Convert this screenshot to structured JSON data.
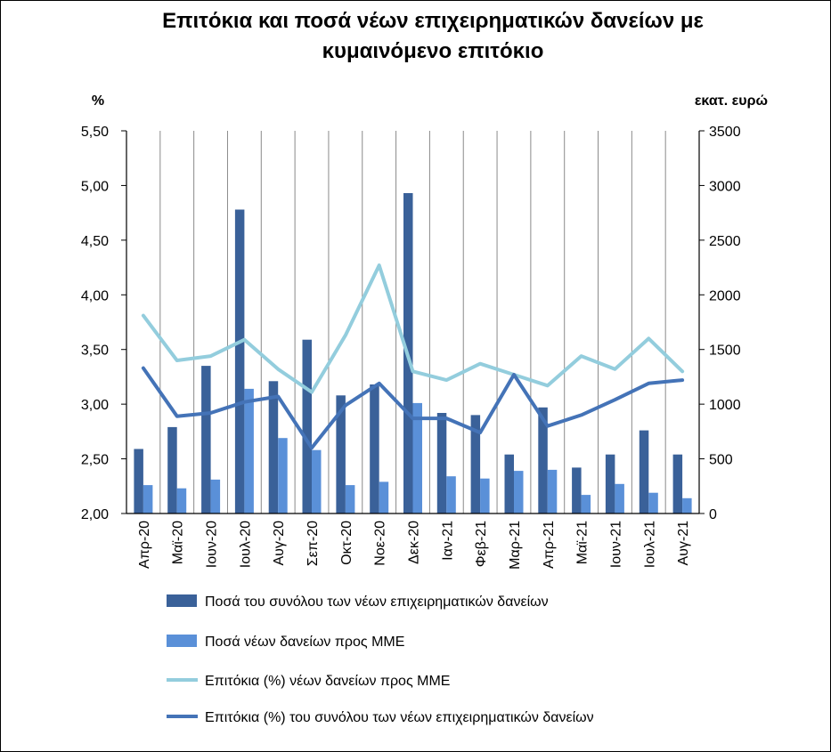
{
  "chart_data": {
    "type": "bar+line",
    "title_lines": [
      "Επιτόκια και ποσά νέων επιχειρηματικών  δανείων με",
      "κυμαινόμενο επιτόκιο"
    ],
    "y_left_unit": "%",
    "y_right_unit": "εκατ. ευρώ",
    "y_left_lim": [
      2.0,
      5.5
    ],
    "y_left_ticks": [
      "2,00",
      "2,50",
      "3,00",
      "3,50",
      "4,00",
      "4,50",
      "5,00",
      "5,50"
    ],
    "y_right_lim": [
      0,
      3500
    ],
    "y_right_ticks": [
      "0",
      "500",
      "1000",
      "1500",
      "2000",
      "2500",
      "3000",
      "3500"
    ],
    "grid": "vertical category lines",
    "legend_position": "bottom",
    "categories": [
      "Απρ-20",
      "Μαϊ-20",
      "Ιουν-20",
      "Ιουλ-20",
      "Αυγ-20",
      "Σεπ-20",
      "Οκτ-20",
      "Νοε-20",
      "Δεκ-20",
      "Ιαν-21",
      "Φεβ-21",
      "Μαρ-21",
      "Απρ-21",
      "Μαϊ-21",
      "Ιουν-21",
      "Ιουλ-21",
      "Αυγ-21"
    ],
    "series": [
      {
        "name": "Ποσά του συνόλου των νέων επιχειρηματικών δανείων",
        "kind": "bar",
        "axis": "right",
        "color": "#3a6199",
        "values": [
          590,
          790,
          1350,
          2780,
          1210,
          1590,
          1080,
          1180,
          2930,
          920,
          900,
          540,
          970,
          420,
          540,
          760,
          540
        ]
      },
      {
        "name": "Ποσά νέων δανείων προς ΜΜΕ",
        "kind": "bar",
        "axis": "right",
        "color": "#5a90d8",
        "values": [
          260,
          230,
          310,
          1140,
          690,
          580,
          260,
          290,
          1010,
          340,
          320,
          390,
          400,
          170,
          270,
          190,
          140
        ]
      },
      {
        "name": "Επιτόκια (%) νέων δανείων προς ΜΜΕ",
        "kind": "line",
        "axis": "left",
        "color": "#93cddd",
        "values": [
          3.81,
          3.4,
          3.44,
          3.59,
          3.32,
          3.11,
          3.63,
          4.27,
          3.3,
          3.22,
          3.37,
          3.27,
          3.17,
          3.44,
          3.32,
          3.6,
          3.3
        ]
      },
      {
        "name": "Επιτόκια (%) του συνόλου των νέων επιχειρηματικών δανείων",
        "kind": "line",
        "axis": "left",
        "color": "#4473b7",
        "values": [
          3.33,
          2.89,
          2.92,
          3.02,
          3.07,
          2.6,
          2.99,
          3.19,
          2.87,
          2.87,
          2.74,
          3.27,
          2.8,
          2.9,
          3.04,
          3.19,
          3.22
        ]
      }
    ]
  }
}
